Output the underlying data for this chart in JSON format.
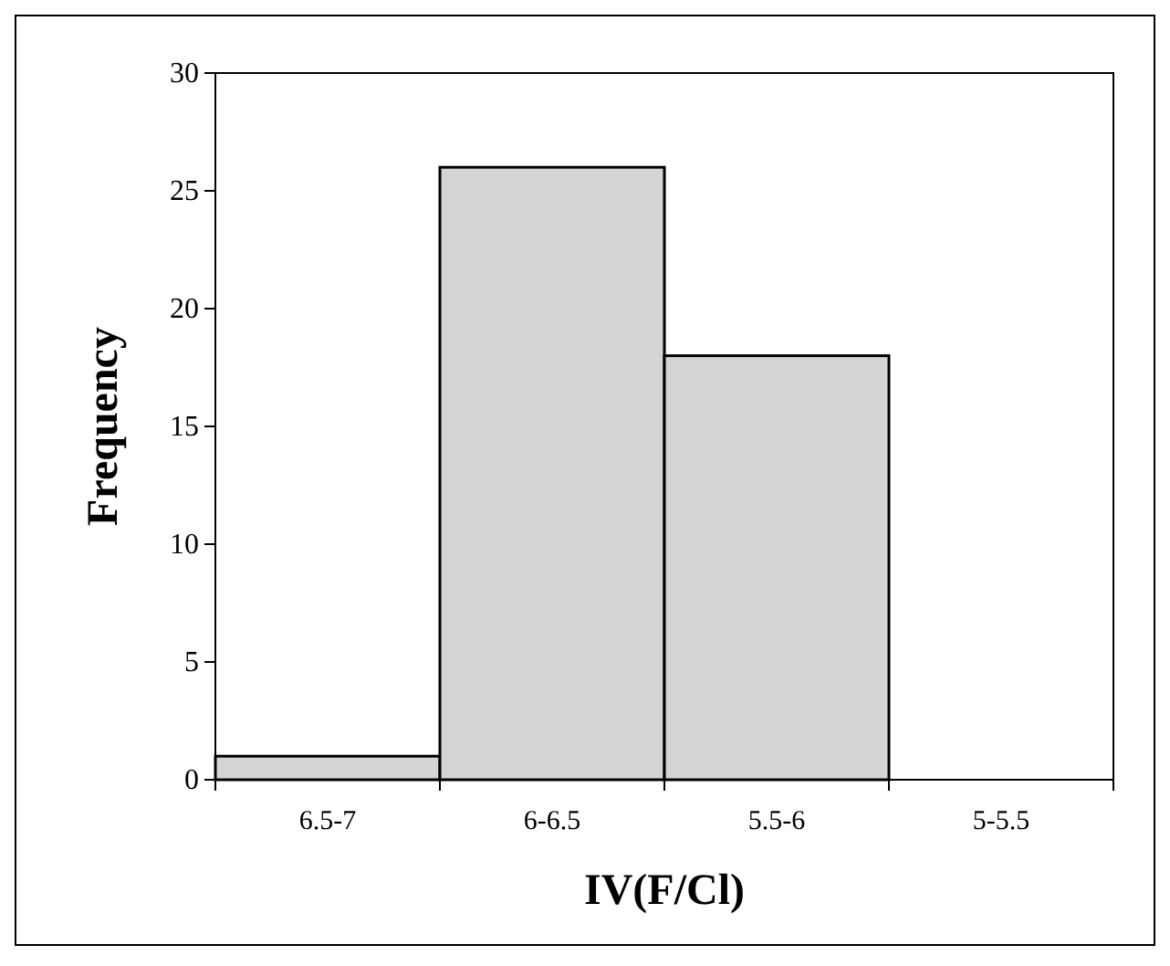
{
  "chart_data": {
    "type": "bar",
    "xlabel": "IV(F/Cl)",
    "ylabel": "Frequency",
    "categories": [
      "6.5-7",
      "6-6.5",
      "5.5-6",
      "5-5.5"
    ],
    "values": [
      1,
      26,
      18,
      0
    ],
    "color": "#d4d4d4",
    "ylim": [
      0,
      30
    ],
    "yticks": [
      0,
      5,
      10,
      15,
      20,
      25,
      30
    ],
    "grid": false
  }
}
